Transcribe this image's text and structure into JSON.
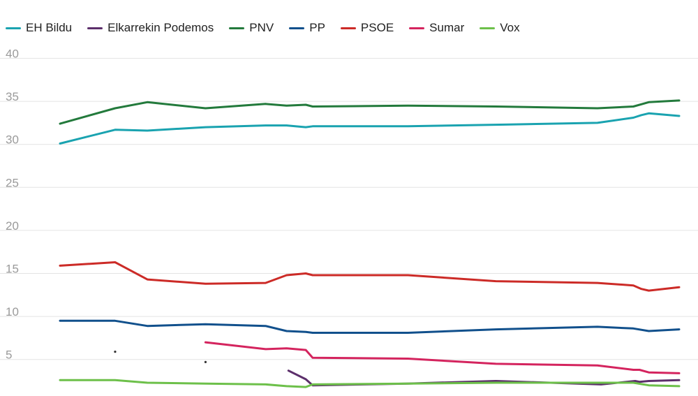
{
  "chart_data": {
    "type": "line",
    "title": "",
    "xlabel": "",
    "ylabel": "",
    "ylim": [
      2,
      40
    ],
    "yticks": [
      5,
      10,
      15,
      20,
      25,
      30,
      35,
      40
    ],
    "grid": true,
    "legend_position": "top-left",
    "x_domain": [
      0,
      100
    ],
    "series": [
      {
        "name": "EH Bildu",
        "color": "#1aa3b0",
        "points": [
          [
            0,
            30.1
          ],
          [
            8.9,
            31.7
          ],
          [
            14.1,
            31.6
          ],
          [
            23.5,
            32
          ],
          [
            33.2,
            32.2
          ],
          [
            36.6,
            32.2
          ],
          [
            39.7,
            32
          ],
          [
            40.8,
            32.1
          ],
          [
            56.2,
            32.1
          ],
          [
            71.9,
            32.3
          ],
          [
            86.8,
            32.5
          ],
          [
            92.6,
            33.1
          ],
          [
            93.9,
            33.4
          ],
          [
            95.1,
            33.6
          ],
          [
            100,
            33.3
          ]
        ]
      },
      {
        "name": "Elkarrekin Podemos",
        "color": "#5c2f6b",
        "points": [
          [
            36.9,
            3.7
          ],
          [
            39.7,
            2.7
          ],
          [
            40.8,
            2
          ],
          [
            56.2,
            2.2
          ],
          [
            70.4,
            2.5
          ],
          [
            87.4,
            2.1
          ],
          [
            92.9,
            2.5
          ],
          [
            93.6,
            2.4
          ],
          [
            95.1,
            2.5
          ],
          [
            100,
            2.6
          ]
        ]
      },
      {
        "name": "PNV",
        "color": "#237a3c",
        "points": [
          [
            0,
            32.4
          ],
          [
            8.9,
            34.2
          ],
          [
            14.1,
            34.9
          ],
          [
            23.5,
            34.2
          ],
          [
            33.2,
            34.7
          ],
          [
            36.6,
            34.5
          ],
          [
            39.7,
            34.6
          ],
          [
            40.8,
            34.4
          ],
          [
            56.2,
            34.5
          ],
          [
            70.4,
            34.4
          ],
          [
            86.8,
            34.2
          ],
          [
            92.6,
            34.4
          ],
          [
            95.1,
            34.9
          ],
          [
            100,
            35.1
          ]
        ]
      },
      {
        "name": "PP",
        "color": "#11508c",
        "points": [
          [
            0,
            9.5
          ],
          [
            8.9,
            9.5
          ],
          [
            14.1,
            8.9
          ],
          [
            23.5,
            9.1
          ],
          [
            33.2,
            8.9
          ],
          [
            36.6,
            8.3
          ],
          [
            39.7,
            8.2
          ],
          [
            40.8,
            8.1
          ],
          [
            56.2,
            8.1
          ],
          [
            70.4,
            8.5
          ],
          [
            86.8,
            8.8
          ],
          [
            92.6,
            8.6
          ],
          [
            95.1,
            8.3
          ],
          [
            100,
            8.5
          ]
        ]
      },
      {
        "name": "PSOE",
        "color": "#cc2b27",
        "points": [
          [
            0,
            15.9
          ],
          [
            8.9,
            16.3
          ],
          [
            14.1,
            14.3
          ],
          [
            23.5,
            13.8
          ],
          [
            33.2,
            13.9
          ],
          [
            36.6,
            14.8
          ],
          [
            39.7,
            15
          ],
          [
            40.8,
            14.8
          ],
          [
            56.2,
            14.8
          ],
          [
            70.4,
            14.1
          ],
          [
            86.8,
            13.9
          ],
          [
            92.6,
            13.6
          ],
          [
            93.9,
            13.2
          ],
          [
            95.1,
            13
          ],
          [
            100,
            13.4
          ]
        ]
      },
      {
        "name": "Sumar",
        "color": "#d4245e",
        "points": [
          [
            23.5,
            7
          ],
          [
            33.2,
            6.2
          ],
          [
            36.6,
            6.3
          ],
          [
            39.7,
            6.1
          ],
          [
            40.8,
            5.2
          ],
          [
            56.2,
            5.1
          ],
          [
            70.4,
            4.5
          ],
          [
            86.8,
            4.3
          ],
          [
            92.6,
            3.8
          ],
          [
            93.6,
            3.8
          ],
          [
            95.1,
            3.5
          ],
          [
            100,
            3.4
          ]
        ]
      },
      {
        "name": "Vox",
        "color": "#6dc04a",
        "points": [
          [
            0,
            2.6
          ],
          [
            8.9,
            2.6
          ],
          [
            14.1,
            2.3
          ],
          [
            23.5,
            2.2
          ],
          [
            33.2,
            2.1
          ],
          [
            36.6,
            1.9
          ],
          [
            39.7,
            1.8
          ],
          [
            40.8,
            2.1
          ],
          [
            56.2,
            2.2
          ],
          [
            70.4,
            2.3
          ],
          [
            86.8,
            2.3
          ],
          [
            92.6,
            2.3
          ],
          [
            95.1,
            2
          ],
          [
            100,
            1.9
          ]
        ]
      },
      {
        "name": "",
        "color": "#333333",
        "markers_only": true,
        "points": [
          [
            8.9,
            5.9
          ],
          [
            23.5,
            4.7
          ]
        ]
      }
    ]
  }
}
